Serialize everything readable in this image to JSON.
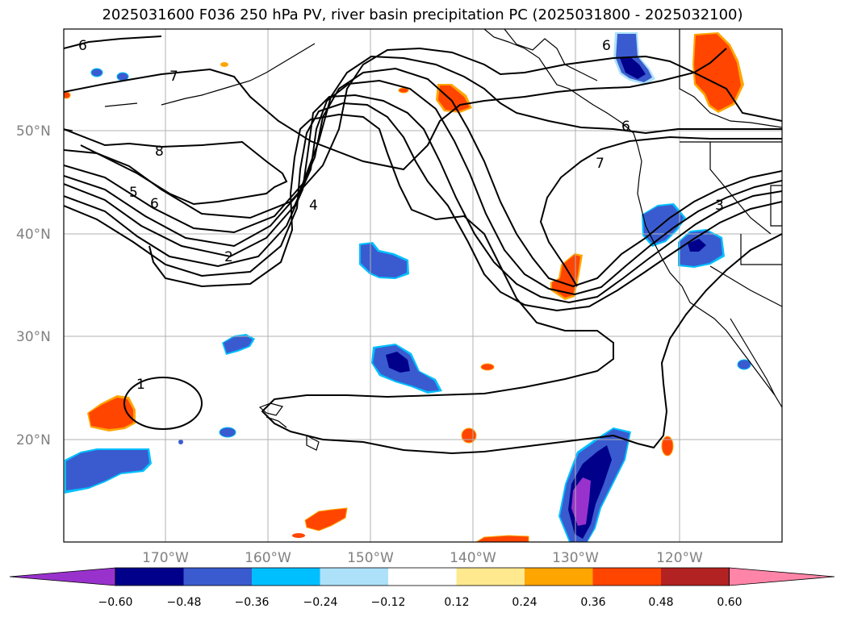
{
  "title": "2025031600 F036 250 hPa PV, river basin precipitation PC (2025031800 - 2025032100)",
  "latitude_labels": [
    "50°N",
    "40°N",
    "30°N",
    "20°N"
  ],
  "longitude_labels": [
    "170°W",
    "160°W",
    "150°W",
    "140°W",
    "130°W",
    "120°W"
  ],
  "pv_contour_labels": [
    "6",
    "7",
    "8",
    "5",
    "6",
    "4",
    "2",
    "6",
    "7",
    "6",
    "3",
    "1"
  ],
  "colorbar": {
    "tick_labels": [
      "−0.60",
      "−0.48",
      "−0.36",
      "−0.24",
      "−0.12",
      "0.12",
      "0.24",
      "0.36",
      "0.48",
      "0.60"
    ],
    "colors": [
      "#9932CC",
      "#00008B",
      "#3A5BCF",
      "#00BFFF",
      "#ADE1F9",
      "#FFFFFF",
      "#FFE98F",
      "#FFA500",
      "#FF4500",
      "#B22222",
      "#FF85A8"
    ]
  }
}
